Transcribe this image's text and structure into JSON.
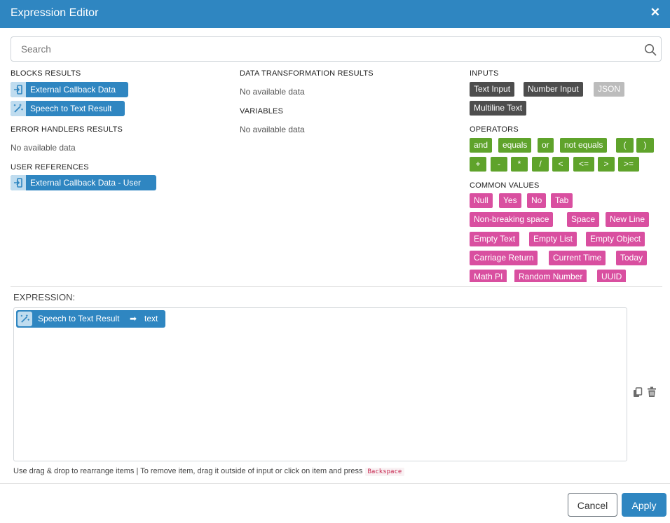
{
  "dialog": {
    "title": "Expression Editor",
    "close_label": "✕"
  },
  "search": {
    "placeholder": "Search",
    "value": ""
  },
  "blocks_results": {
    "title": "BLOCKS RESULTS",
    "items": [
      {
        "label": "External Callback Data",
        "icon": "login-icon"
      },
      {
        "label": "Speech to Text Result",
        "icon": "magic-wand-icon"
      }
    ]
  },
  "error_handlers": {
    "title": "ERROR HANDLERS RESULTS",
    "empty": "No available data"
  },
  "user_references": {
    "title": "USER REFERENCES",
    "items": [
      {
        "label": "External Callback Data - User",
        "icon": "login-icon"
      }
    ]
  },
  "data_transformation": {
    "title": "DATA TRANSFORMATION RESULTS",
    "empty": "No available data"
  },
  "variables": {
    "title": "VARIABLES",
    "empty": "No available data"
  },
  "inputs": {
    "title": "INPUTS",
    "items": [
      "Text Input",
      "Number Input",
      "JSON",
      "Multiline Text"
    ]
  },
  "operators": {
    "title": "OPERATORS",
    "items": [
      "and",
      "equals",
      "or",
      "not equals",
      "(",
      ")",
      "+",
      "-",
      "*",
      "/",
      "<",
      "<=",
      ">",
      ">="
    ]
  },
  "common_values": {
    "title": "COMMON VALUES",
    "items": [
      "Null",
      "Yes",
      "No",
      "Tab",
      "Non-breaking space",
      "Space",
      "New Line",
      "Empty Text",
      "Empty List",
      "Empty Object",
      "Carriage Return",
      "Current Time",
      "Today",
      "Math PI",
      "Random Number",
      "UUID"
    ]
  },
  "expression": {
    "label": "EXPRESSION:",
    "chip": {
      "label": "Speech to Text Result",
      "arrow": "➡",
      "field": "text",
      "icon": "magic-wand-icon"
    }
  },
  "hint": {
    "text": "Use drag & drop to rearrange items | To remove item, drag it outside of input or click on item and press",
    "key": "Backspace"
  },
  "footer": {
    "cancel_label": "Cancel",
    "apply_label": "Apply"
  },
  "colors": {
    "primary": "#2f86c1",
    "input_chip": "#4d4d4d",
    "operator_chip": "#5fa32b",
    "value_chip": "#d94fa0",
    "disabled_chip": "#bcbcbc"
  }
}
